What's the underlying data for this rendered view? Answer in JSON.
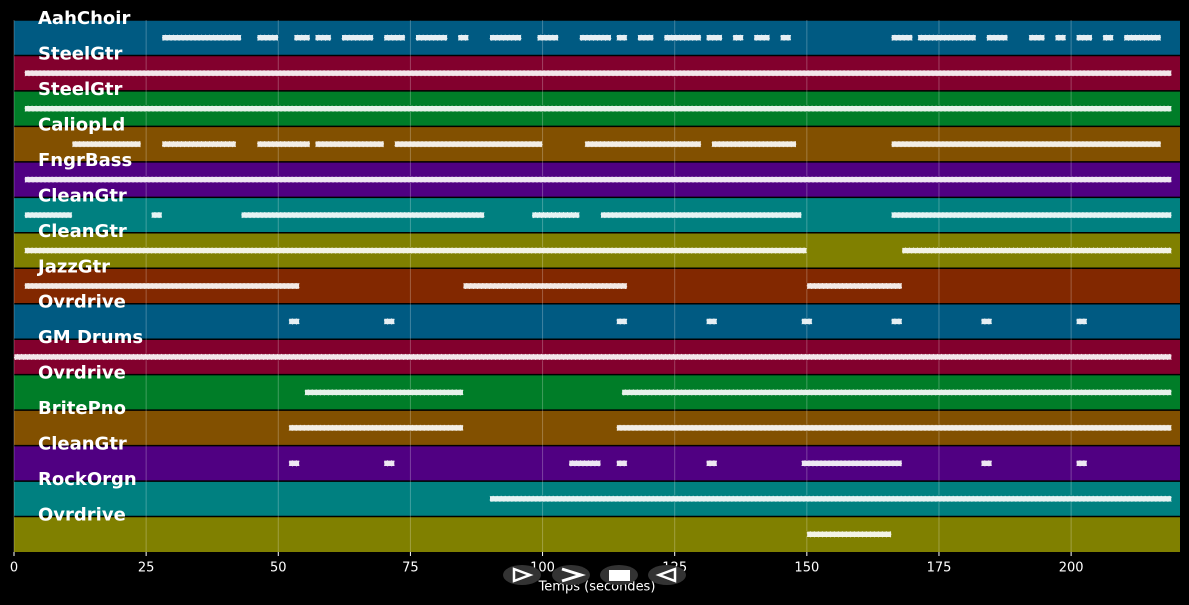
{
  "chart_data": {
    "type": "pianoroll",
    "xlabel": "Temps (secondes)",
    "xlim": [
      0,
      220.6
    ],
    "xticks": [
      0,
      25,
      50,
      75,
      100,
      125,
      150,
      175,
      200
    ],
    "grid": true,
    "tracks": [
      {
        "name": "AahChoir",
        "color": "#005a82",
        "spans": [
          [
            28,
            43
          ],
          [
            46,
            50
          ],
          [
            53,
            56
          ],
          [
            57,
            60
          ],
          [
            62,
            68
          ],
          [
            70,
            74
          ],
          [
            76,
            82
          ],
          [
            84,
            86
          ],
          [
            90,
            96
          ],
          [
            99,
            103
          ],
          [
            107,
            113
          ],
          [
            114,
            116
          ],
          [
            118,
            121
          ],
          [
            123,
            130
          ],
          [
            131,
            134
          ],
          [
            136,
            138
          ],
          [
            140,
            143
          ],
          [
            145,
            147
          ],
          [
            166,
            170
          ],
          [
            171,
            182
          ],
          [
            184,
            188
          ],
          [
            192,
            195
          ],
          [
            197,
            199
          ],
          [
            201,
            204
          ],
          [
            206,
            208
          ],
          [
            210,
            217
          ]
        ]
      },
      {
        "name": "SteelGtr",
        "color": "#82002d",
        "spans": [
          [
            2,
            219
          ]
        ]
      },
      {
        "name": "SteelGtr",
        "color": "#007d28",
        "spans": [
          [
            2,
            219
          ]
        ]
      },
      {
        "name": "CaliopLd",
        "color": "#825000",
        "spans": [
          [
            11,
            24
          ],
          [
            28,
            42
          ],
          [
            46,
            56
          ],
          [
            57,
            70
          ],
          [
            72,
            100
          ],
          [
            108,
            130
          ],
          [
            132,
            148
          ],
          [
            166,
            217
          ]
        ]
      },
      {
        "name": "FngrBass",
        "color": "#500082",
        "spans": [
          [
            2,
            219
          ]
        ]
      },
      {
        "name": "CleanGtr",
        "color": "#008080",
        "spans": [
          [
            2,
            11
          ],
          [
            26,
            28
          ],
          [
            43,
            89
          ],
          [
            98,
            107
          ],
          [
            111,
            149
          ],
          [
            166,
            219
          ]
        ]
      },
      {
        "name": "CleanGtr",
        "color": "#808000",
        "spans": [
          [
            2,
            150
          ],
          [
            168,
            219
          ]
        ]
      },
      {
        "name": "JazzGtr",
        "color": "#822800",
        "spans": [
          [
            2,
            54
          ],
          [
            85,
            116
          ],
          [
            150,
            168
          ]
        ]
      },
      {
        "name": "Ovrdrive",
        "color": "#005a82",
        "spans": [
          [
            52,
            54
          ],
          [
            70,
            72
          ],
          [
            114,
            116
          ],
          [
            131,
            133
          ],
          [
            149,
            151
          ],
          [
            166,
            168
          ],
          [
            183,
            185
          ],
          [
            201,
            203
          ]
        ]
      },
      {
        "name": "GM Drums",
        "color": "#82002d",
        "spans": [
          [
            0,
            219
          ]
        ]
      },
      {
        "name": "Ovrdrive",
        "color": "#007d28",
        "spans": [
          [
            55,
            85
          ],
          [
            115,
            219
          ]
        ]
      },
      {
        "name": "BritePno",
        "color": "#825000",
        "spans": [
          [
            52,
            85
          ],
          [
            114,
            219
          ]
        ]
      },
      {
        "name": "CleanGtr",
        "color": "#500082",
        "spans": [
          [
            52,
            54
          ],
          [
            70,
            72
          ],
          [
            105,
            111
          ],
          [
            114,
            116
          ],
          [
            131,
            133
          ],
          [
            149,
            168
          ],
          [
            183,
            185
          ],
          [
            201,
            203
          ]
        ]
      },
      {
        "name": "RockOrgn",
        "color": "#008080",
        "spans": [
          [
            90,
            219
          ]
        ]
      },
      {
        "name": "Ovrdrive",
        "color": "#808000",
        "spans": [
          [
            150,
            166
          ]
        ]
      }
    ]
  }
}
